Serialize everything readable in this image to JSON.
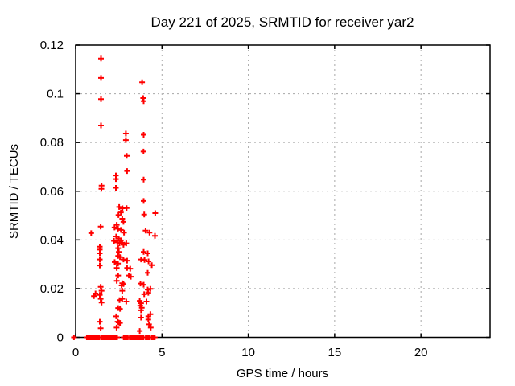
{
  "window": {
    "background": "#ffffff"
  },
  "chart_data": {
    "type": "scatter",
    "title": "Day 221 of 2025, SRMTID for receiver yar2",
    "xlabel": "GPS time / hours",
    "ylabel": "SRMTID / TECUs",
    "xlim": [
      0,
      24
    ],
    "ylim": [
      0,
      0.12
    ],
    "xticks": {
      "values": [
        0,
        5,
        10,
        15,
        20
      ],
      "labels": [
        "0",
        "5",
        "10",
        "15",
        "20"
      ]
    },
    "yticks": {
      "values": [
        0,
        0.02,
        0.04,
        0.06,
        0.08,
        0.1,
        0.12
      ],
      "labels": [
        "0",
        "0.02",
        "0.04",
        "0.06",
        "0.08",
        "0.1",
        "0.12"
      ]
    },
    "grid": "dashed-gray",
    "legend": "none",
    "colors": {
      "marker": "#ff0000",
      "border": "#000000",
      "grid": "#a8a8a8",
      "text": "#000000"
    },
    "series": [
      {
        "name": "SRMTID",
        "marker": "plus",
        "color": "#ff0000",
        "points": [
          [
            1.47,
            0.1145
          ],
          [
            1.47,
            0.1065
          ],
          [
            1.47,
            0.0978
          ],
          [
            1.47,
            0.087
          ],
          [
            1.5,
            0.0623
          ],
          [
            1.49,
            0.061
          ],
          [
            1.45,
            0.0455
          ],
          [
            0.9,
            0.0428
          ],
          [
            1.4,
            0.0372
          ],
          [
            1.4,
            0.036
          ],
          [
            1.4,
            0.0345
          ],
          [
            1.4,
            0.032
          ],
          [
            1.4,
            0.0295
          ],
          [
            1.45,
            0.0207
          ],
          [
            1.5,
            0.0191
          ],
          [
            1.4,
            0.0174
          ],
          [
            1.06,
            0.0169
          ],
          [
            1.45,
            0.0158
          ],
          [
            1.5,
            0.0143
          ],
          [
            1.15,
            0.018
          ],
          [
            1.4,
            0.0064
          ],
          [
            1.45,
            0.0037
          ],
          [
            2.91,
            0.0837
          ],
          [
            2.91,
            0.081
          ],
          [
            2.96,
            0.0745
          ],
          [
            2.98,
            0.0683
          ],
          [
            2.33,
            0.0665
          ],
          [
            2.33,
            0.065
          ],
          [
            2.33,
            0.0614
          ],
          [
            2.52,
            0.0535
          ],
          [
            2.71,
            0.053
          ],
          [
            2.95,
            0.0531
          ],
          [
            2.62,
            0.0513
          ],
          [
            2.48,
            0.0502
          ],
          [
            2.7,
            0.0487
          ],
          [
            2.77,
            0.0474
          ],
          [
            2.38,
            0.0462
          ],
          [
            2.25,
            0.0451
          ],
          [
            2.45,
            0.0446
          ],
          [
            2.62,
            0.0441
          ],
          [
            2.8,
            0.043
          ],
          [
            2.35,
            0.0414
          ],
          [
            2.5,
            0.0406
          ],
          [
            2.22,
            0.0396
          ],
          [
            2.42,
            0.039
          ],
          [
            2.62,
            0.0398
          ],
          [
            2.54,
            0.0386
          ],
          [
            2.7,
            0.0389
          ],
          [
            2.93,
            0.0386
          ],
          [
            2.77,
            0.038
          ],
          [
            2.46,
            0.0366
          ],
          [
            2.5,
            0.0351
          ],
          [
            2.46,
            0.0334
          ],
          [
            2.57,
            0.0329
          ],
          [
            2.77,
            0.032
          ],
          [
            2.98,
            0.0315
          ],
          [
            2.26,
            0.0309
          ],
          [
            2.45,
            0.0303
          ],
          [
            2.38,
            0.0285
          ],
          [
            2.98,
            0.0285
          ],
          [
            3.16,
            0.0282
          ],
          [
            2.46,
            0.0254
          ],
          [
            3.08,
            0.0254
          ],
          [
            3.19,
            0.0249
          ],
          [
            2.38,
            0.0232
          ],
          [
            2.7,
            0.0222
          ],
          [
            2.66,
            0.0213
          ],
          [
            2.77,
            0.0219
          ],
          [
            2.7,
            0.0191
          ],
          [
            2.54,
            0.0153
          ],
          [
            2.7,
            0.0158
          ],
          [
            2.93,
            0.0147
          ],
          [
            2.46,
            0.012
          ],
          [
            2.57,
            0.0117
          ],
          [
            2.35,
            0.0086
          ],
          [
            2.43,
            0.0064
          ],
          [
            2.49,
            0.0061
          ],
          [
            2.57,
            0.0059
          ],
          [
            2.37,
            0.004
          ],
          [
            3.85,
            0.1047
          ],
          [
            3.91,
            0.0982
          ],
          [
            3.94,
            0.097
          ],
          [
            3.94,
            0.0832
          ],
          [
            3.93,
            0.0763
          ],
          [
            3.94,
            0.0648
          ],
          [
            3.94,
            0.056
          ],
          [
            3.97,
            0.0504
          ],
          [
            4.61,
            0.051
          ],
          [
            4.05,
            0.0438
          ],
          [
            4.28,
            0.043
          ],
          [
            4.59,
            0.0417
          ],
          [
            3.94,
            0.0351
          ],
          [
            4.17,
            0.0345
          ],
          [
            3.79,
            0.032
          ],
          [
            3.99,
            0.0318
          ],
          [
            4.22,
            0.0312
          ],
          [
            4.41,
            0.0296
          ],
          [
            4.17,
            0.0265
          ],
          [
            3.75,
            0.0221
          ],
          [
            3.94,
            0.0216
          ],
          [
            4.17,
            0.0196
          ],
          [
            4.33,
            0.0199
          ],
          [
            3.97,
            0.0177
          ],
          [
            4.21,
            0.0183
          ],
          [
            3.71,
            0.015
          ],
          [
            3.79,
            0.014
          ],
          [
            3.74,
            0.013
          ],
          [
            3.83,
            0.0121
          ],
          [
            3.79,
            0.0111
          ],
          [
            4.1,
            0.0147
          ],
          [
            3.79,
            0.0081
          ],
          [
            4.21,
            0.0086
          ],
          [
            4.21,
            0.0073
          ],
          [
            4.33,
            0.0095
          ],
          [
            3.71,
            0.0026
          ],
          [
            4.25,
            0.0053
          ],
          [
            4.35,
            0.004
          ]
        ],
        "zero_value_runs": [
          [
            0.65,
            1.37
          ],
          [
            1.48,
            2.4
          ],
          [
            2.78,
            3.04
          ],
          [
            3.13,
            3.63
          ],
          [
            3.69,
            3.94
          ],
          [
            4.06,
            4.32
          ],
          [
            4.42,
            4.6
          ]
        ],
        "isolated_zero_point": [
          -0.1,
          0
        ]
      }
    ]
  }
}
